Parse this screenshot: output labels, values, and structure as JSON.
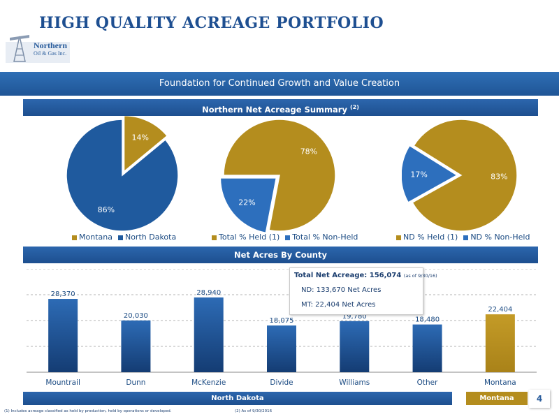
{
  "header": {
    "title": "HIGH QUALITY ACREAGE PORTFOLIO",
    "logo_line1": "Northern",
    "logo_line2": "Oil & Gas Inc."
  },
  "banner": "Foundation for Continued Growth and Value Creation",
  "summary_heading": "Northern Net Acreage Summary",
  "summary_sup": "(2)",
  "county_heading": "Net Acres By County",
  "callout": {
    "total_label": "Total Net Acreage: 156,074",
    "total_note": "(as of 9/30/16)",
    "nd": "ND: 133,670 Net Acres",
    "mt": "MT: 22,404 Net Acres"
  },
  "colors": {
    "gold": "#b48d1e",
    "blue": "#1f5a9e",
    "blue_light": "#2d6fbd",
    "text_blue": "#1a4a82"
  },
  "chart_data": [
    {
      "type": "pie",
      "slices": [
        {
          "name": "Montana",
          "value": 14,
          "label": "14%"
        },
        {
          "name": "North Dakota",
          "value": 86,
          "label": "86%"
        }
      ]
    },
    {
      "type": "pie",
      "slices": [
        {
          "name": "Total % Held (1)",
          "value": 78,
          "label": "78%"
        },
        {
          "name": "Total % Non-Held",
          "value": 22,
          "label": "22%"
        }
      ]
    },
    {
      "type": "pie",
      "slices": [
        {
          "name": "ND % Held (1)",
          "value": 83,
          "label": "83%"
        },
        {
          "name": "ND % Non-Held",
          "value": 17,
          "label": "17%"
        }
      ]
    },
    {
      "type": "bar",
      "categories": [
        "Mountrail",
        "Dunn",
        "McKenzie",
        "Divide",
        "Williams",
        "Other",
        "Montana"
      ],
      "values": [
        28370,
        20030,
        28940,
        18075,
        19780,
        18480,
        22404
      ],
      "data_labels": [
        "28,370",
        "20,030",
        "28,940",
        "18,075",
        "19,780",
        "18,480",
        "22,404"
      ],
      "groups": [
        "North Dakota",
        "North Dakota",
        "North Dakota",
        "North Dakota",
        "North Dakota",
        "North Dakota",
        "Montana"
      ],
      "ylim": [
        0,
        40000
      ],
      "grid": true
    }
  ],
  "footer": {
    "nd_label": "North Dakota",
    "mt_label": "Montana",
    "page": "4",
    "note1": "(1)    Includes acreage classified as held by production, held by operations or developed.",
    "note2": "(2) As of 9/30/2016"
  }
}
